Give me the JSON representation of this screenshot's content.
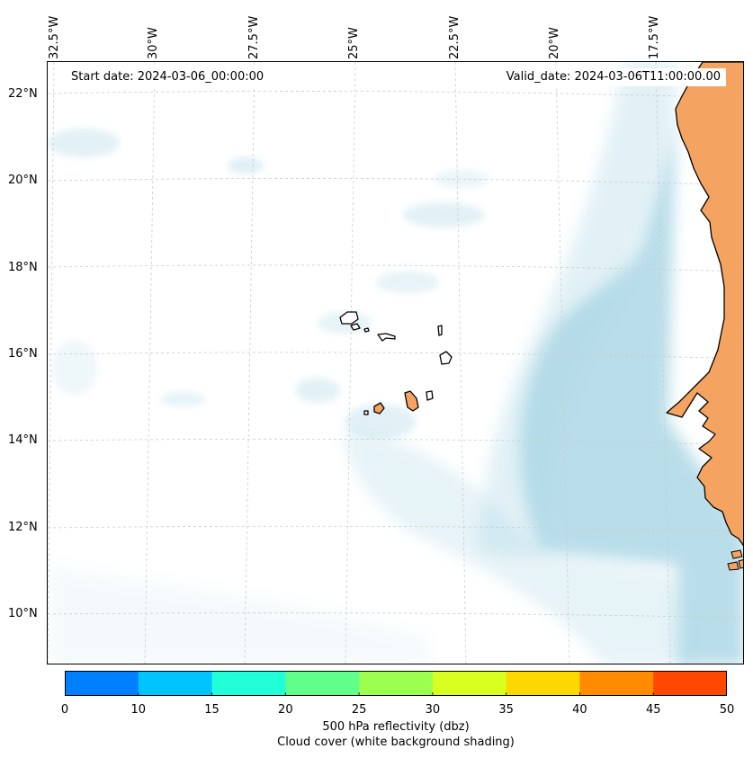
{
  "map": {
    "start_date_text": "Start date: 2024-03-06_00:00:00",
    "valid_date_text": "Valid_date: 2024-03-06T11:00:00.00",
    "lon_labels": [
      "32.5°W",
      "30°W",
      "27.5°W",
      "25°W",
      "22.5°W",
      "20°W",
      "17.5°W"
    ],
    "lat_labels": [
      "22°N",
      "20°N",
      "18°N",
      "16°N",
      "14°N",
      "12°N",
      "10°N"
    ],
    "colors": {
      "land": "#f4a460",
      "cloud": "#add8e6",
      "grid": "#cccccc",
      "coast": "#000000"
    },
    "features": [
      "Cape Verde islands",
      "West African coastline",
      "cloud cover shading"
    ]
  },
  "colorbar": {
    "ticks": [
      "0",
      "10",
      "15",
      "20",
      "25",
      "30",
      "35",
      "40",
      "45",
      "50"
    ],
    "colors": [
      "#0080ff",
      "#00c4ff",
      "#20ffd8",
      "#60ff8c",
      "#9cff50",
      "#d8ff20",
      "#ffd800",
      "#ff8c00",
      "#ff4800"
    ],
    "label_line1": "500 hPa reflectivity (dbz)",
    "label_line2": "Cloud cover (white background shading)"
  }
}
